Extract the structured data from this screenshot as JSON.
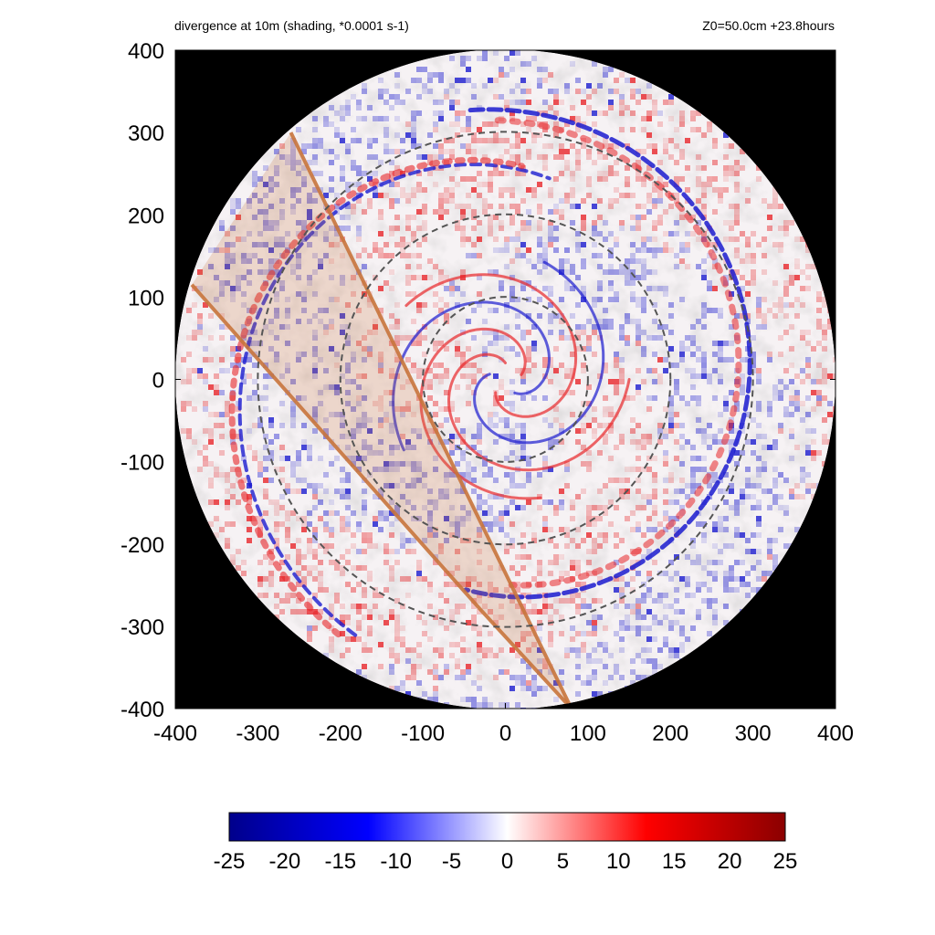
{
  "header": {
    "left": "divergence at 10m (shading, *0.0001 s-1)",
    "right": "Z0=50.0cm  +23.8hours"
  },
  "chart_data": {
    "type": "heatmap",
    "title": "divergence at 10m (shading, *0.0001 s-1)",
    "subtitle": "Z0=50.0cm  +23.8hours",
    "xlabel": "",
    "ylabel": "",
    "xlim": [
      -400,
      400
    ],
    "ylim": [
      -400,
      400
    ],
    "x_ticks": [
      -400,
      -300,
      -200,
      -100,
      0,
      100,
      200,
      300,
      400
    ],
    "y_ticks": [
      -400,
      -300,
      -200,
      -100,
      0,
      100,
      200,
      300,
      400
    ],
    "domain_radius": 400,
    "outside_domain_color": "#000000",
    "reference_circles_radius": [
      100,
      200,
      300
    ],
    "reference_circle_style": "dashed gray",
    "highlighted_band": {
      "color": "#c8743c",
      "edge_1": [
        [
          -260,
          300
        ],
        [
          80,
          -400
        ]
      ],
      "edge_2": [
        [
          -380,
          115
        ],
        [
          -30,
          -280
        ],
        [
          80,
          -400
        ]
      ]
    },
    "colorbar": {
      "min": -25,
      "max": 25,
      "ticks": [
        -25,
        -20,
        -15,
        -10,
        -5,
        0,
        5,
        10,
        15,
        20,
        25
      ],
      "colors": [
        "#00008b",
        "#0000ff",
        "#ffffff",
        "#ff0000",
        "#8b0000"
      ]
    },
    "positive_color": "#e8262a",
    "negative_color": "#1b1bcf"
  }
}
